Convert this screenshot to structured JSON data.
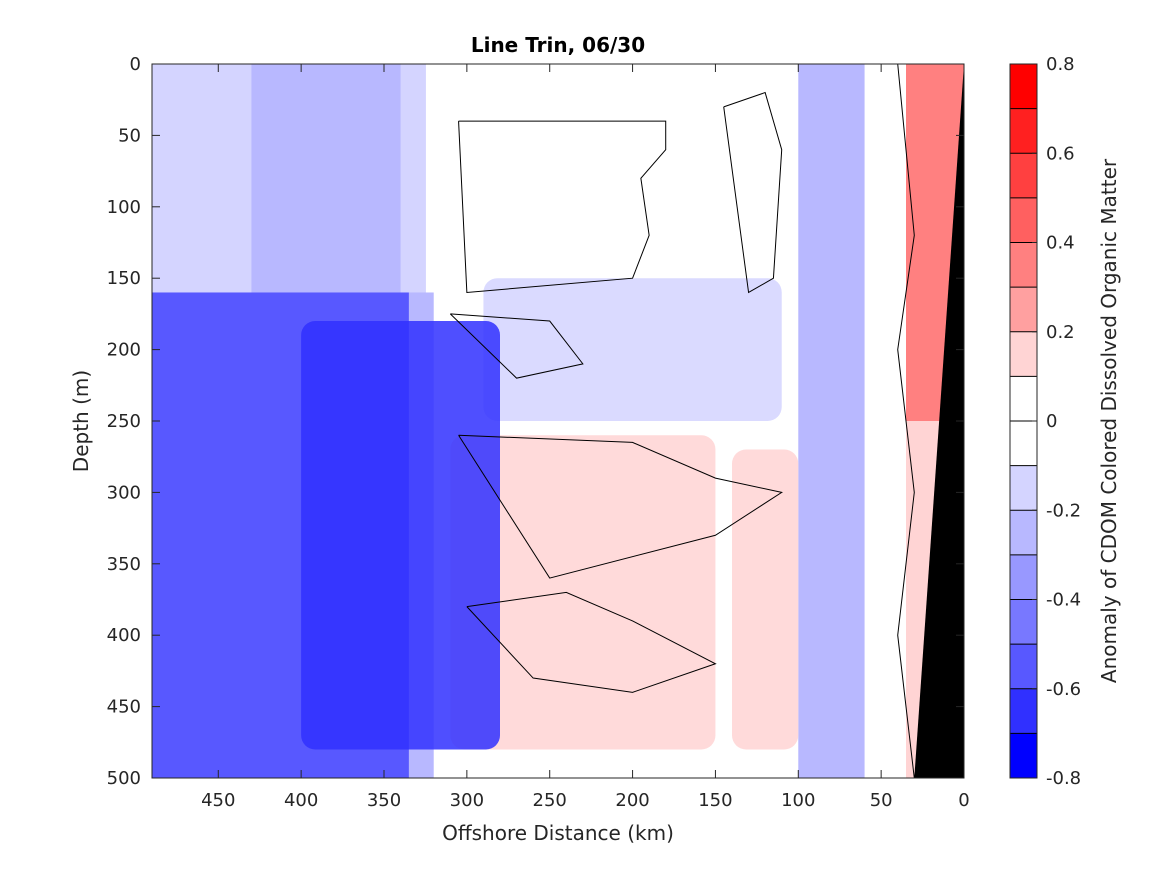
{
  "chart_data": {
    "type": "heatmap",
    "title": "Line Trin, 06/30",
    "xlabel": "Offshore Distance (km)",
    "ylabel": "Depth (m)",
    "colorbar_label": "Anomaly of CDOM Colored Dissolved Organic Matter",
    "xlim": [
      490,
      0
    ],
    "ylim": [
      0,
      500
    ],
    "x_reversed": true,
    "y_reversed": true,
    "x_ticks": [
      450,
      400,
      350,
      300,
      250,
      200,
      150,
      100,
      50,
      0
    ],
    "y_ticks": [
      0,
      50,
      100,
      150,
      200,
      250,
      300,
      350,
      400,
      450,
      500
    ],
    "colorbar_range": [
      -0.8,
      0.8
    ],
    "colorbar_tick_values": [
      0.8,
      0.6,
      0.4,
      0.2,
      0,
      -0.2,
      -0.4,
      -0.6,
      -0.8
    ],
    "colorbar_tick_labels": [
      "0.8",
      "0.6",
      "0.4",
      "0.2",
      "0",
      "-0.2",
      "-0.4",
      "-0.6",
      "-0.8"
    ],
    "colorbar_levels": [
      {
        "range": [
          0.7,
          0.8
        ],
        "color": "#ff0000"
      },
      {
        "range": [
          0.6,
          0.7
        ],
        "color": "#ff2020"
      },
      {
        "range": [
          0.5,
          0.6
        ],
        "color": "#ff4040"
      },
      {
        "range": [
          0.4,
          0.5
        ],
        "color": "#ff6060"
      },
      {
        "range": [
          0.3,
          0.4
        ],
        "color": "#ff8080"
      },
      {
        "range": [
          0.2,
          0.3
        ],
        "color": "#ffa0a0"
      },
      {
        "range": [
          0.1,
          0.2
        ],
        "color": "#ffd4d4"
      },
      {
        "range": [
          0.0,
          0.1
        ],
        "color": "#ffffff"
      },
      {
        "range": [
          -0.1,
          0.0
        ],
        "color": "#ffffff"
      },
      {
        "range": [
          -0.2,
          -0.1
        ],
        "color": "#d4d4ff"
      },
      {
        "range": [
          -0.3,
          -0.2
        ],
        "color": "#b8b8ff"
      },
      {
        "range": [
          -0.4,
          -0.3
        ],
        "color": "#9898ff"
      },
      {
        "range": [
          -0.5,
          -0.4
        ],
        "color": "#7878ff"
      },
      {
        "range": [
          -0.6,
          -0.5
        ],
        "color": "#5858ff"
      },
      {
        "range": [
          -0.7,
          -0.6
        ],
        "color": "#3030ff"
      },
      {
        "range": [
          -0.8,
          -0.7
        ],
        "color": "#0000ff"
      }
    ],
    "bands": [
      {
        "x_range": [
          490,
          430
        ],
        "depth_range": [
          0,
          160
        ],
        "value": -0.2
      },
      {
        "x_range": [
          430,
          340
        ],
        "depth_range": [
          0,
          160
        ],
        "value": -0.3
      },
      {
        "x_range": [
          340,
          325
        ],
        "depth_range": [
          0,
          160
        ],
        "value": -0.2
      },
      {
        "x_range": [
          490,
          335
        ],
        "depth_range": [
          160,
          500
        ],
        "value": -0.55
      },
      {
        "x_range": [
          335,
          320
        ],
        "depth_range": [
          160,
          500
        ],
        "value": -0.25
      },
      {
        "x_range": [
          320,
          100
        ],
        "depth_range": [
          0,
          500
        ],
        "value": 0.0
      },
      {
        "x_range": [
          100,
          60
        ],
        "depth_range": [
          0,
          500
        ],
        "value": -0.3
      },
      {
        "x_range": [
          60,
          35
        ],
        "depth_range": [
          0,
          500
        ],
        "value": -0.1
      },
      {
        "x_range": [
          35,
          0
        ],
        "depth_range": [
          0,
          250
        ],
        "value": 0.3
      },
      {
        "x_range": [
          35,
          0
        ],
        "depth_range": [
          250,
          500
        ],
        "value": 0.15
      }
    ],
    "anomaly_patches": [
      {
        "x_range": [
          310,
          150
        ],
        "depth_range": [
          260,
          480
        ],
        "value": 0.15
      },
      {
        "x_range": [
          140,
          100
        ],
        "depth_range": [
          270,
          480
        ],
        "value": 0.15
      },
      {
        "x_range": [
          290,
          110
        ],
        "depth_range": [
          150,
          250
        ],
        "value": -0.15
      },
      {
        "x_range": [
          400,
          280
        ],
        "depth_range": [
          180,
          480
        ],
        "value": -0.65
      }
    ],
    "bathymetry": {
      "description": "black seafloor wedge",
      "x_at_bottom": 30,
      "x_at_top": 0,
      "depth_top": 0,
      "depth_bottom": 500,
      "color": "#000000"
    },
    "contours": [
      {
        "level": 0,
        "x": [
          305,
          180,
          180,
          195,
          190,
          200,
          300,
          305
        ],
        "depth": [
          40,
          40,
          60,
          80,
          120,
          150,
          160,
          40
        ]
      },
      {
        "level": 0,
        "x": [
          145,
          120,
          110,
          115,
          130,
          145
        ],
        "depth": [
          30,
          20,
          60,
          150,
          160,
          30
        ]
      },
      {
        "level": 0,
        "x": [
          310,
          250,
          230,
          270,
          310
        ],
        "depth": [
          175,
          180,
          210,
          220,
          175
        ]
      },
      {
        "level": 0,
        "x": [
          305,
          200,
          150,
          110,
          150,
          250,
          305
        ],
        "depth": [
          260,
          265,
          290,
          300,
          330,
          360,
          260
        ]
      },
      {
        "level": 0,
        "x": [
          300,
          240,
          200,
          150,
          200,
          260,
          300
        ],
        "depth": [
          380,
          370,
          390,
          420,
          440,
          430,
          380
        ]
      },
      {
        "level": 0,
        "x": [
          40,
          30,
          40,
          30,
          40,
          30
        ],
        "depth": [
          0,
          120,
          200,
          300,
          400,
          500
        ]
      }
    ],
    "grid": false,
    "legend": "colorbar-right"
  }
}
